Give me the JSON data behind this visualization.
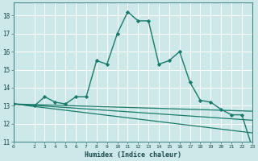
{
  "title": "",
  "xlabel": "Humidex (Indice chaleur)",
  "bg_color": "#cce8e8",
  "line_color": "#1a7a6a",
  "grid_color": "#ffffff",
  "xlim": [
    0,
    23
  ],
  "ylim": [
    11,
    18.7
  ],
  "yticks": [
    11,
    12,
    13,
    14,
    15,
    16,
    17,
    18
  ],
  "xticks": [
    0,
    2,
    3,
    4,
    5,
    6,
    7,
    8,
    9,
    10,
    11,
    12,
    13,
    14,
    15,
    16,
    17,
    18,
    19,
    20,
    21,
    22,
    23
  ],
  "main_line": {
    "x": [
      0,
      2,
      3,
      4,
      5,
      6,
      7,
      8,
      9,
      10,
      11,
      12,
      13,
      14,
      15,
      16,
      17,
      18,
      19,
      20,
      21,
      22,
      23
    ],
    "y": [
      13.1,
      13.0,
      13.5,
      13.2,
      13.1,
      13.5,
      13.5,
      15.5,
      15.3,
      17.0,
      18.2,
      17.7,
      17.7,
      15.3,
      15.5,
      16.0,
      14.3,
      13.3,
      13.2,
      12.8,
      12.5,
      12.5,
      10.7
    ]
  },
  "flat_lines": [
    {
      "x": [
        0,
        23
      ],
      "y": [
        13.1,
        12.7
      ]
    },
    {
      "x": [
        0,
        23
      ],
      "y": [
        13.1,
        12.2
      ]
    },
    {
      "x": [
        0,
        23
      ],
      "y": [
        13.1,
        11.5
      ]
    }
  ]
}
